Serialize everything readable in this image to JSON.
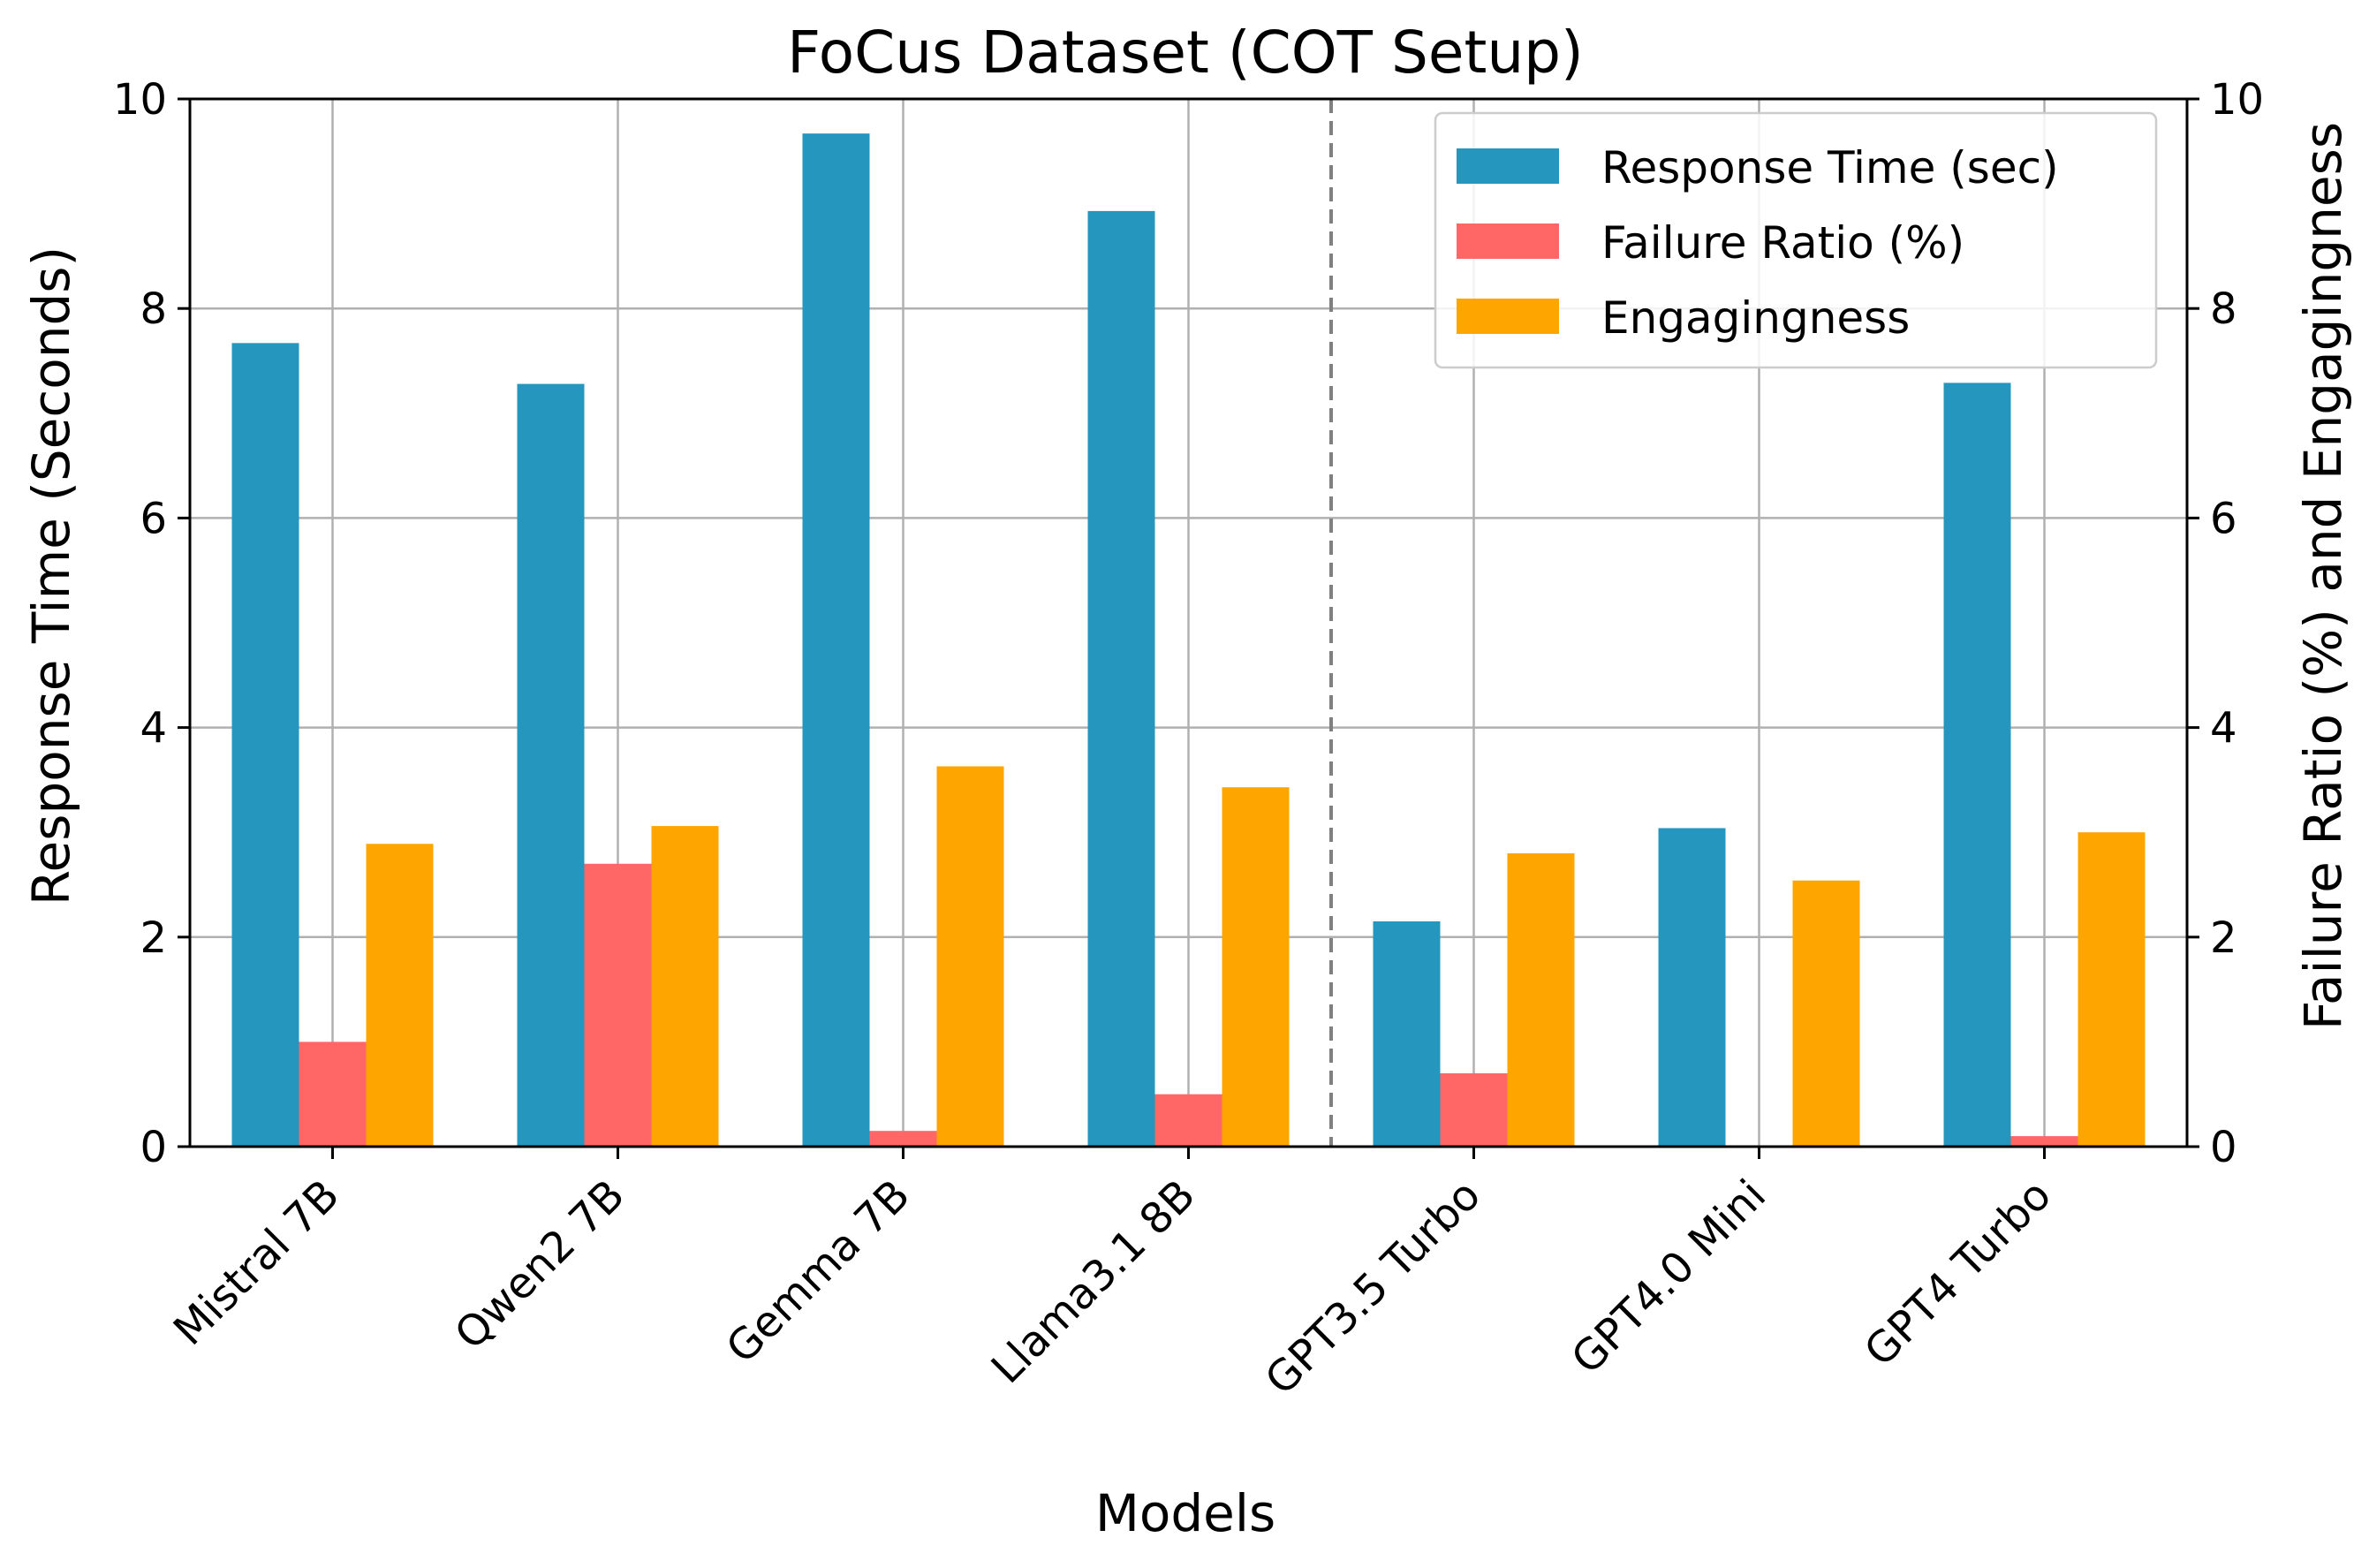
{
  "chart_data": {
    "type": "bar",
    "title": "FoCus Dataset (COT Setup)",
    "xlabel": "Models",
    "ylabel": "Response Time (Seconds)",
    "ylabel_right": "Failure Ratio (%) and Engagingness",
    "categories": [
      "Mistral 7B",
      "Qwen2 7B",
      "Gemma 7B",
      "Llama3.1 8B",
      "GPT3.5 Turbo",
      "GPT4.0 Mini",
      "GPT4 Turbo"
    ],
    "series": [
      {
        "name": "Response Time (sec)",
        "axis": "left",
        "color": "#2596be",
        "values": [
          7.67,
          7.28,
          9.67,
          8.93,
          2.15,
          3.04,
          7.29
        ]
      },
      {
        "name": "Failure Ratio (%)",
        "axis": "right",
        "color": "#ff6666",
        "values": [
          1.0,
          2.7,
          0.15,
          0.5,
          0.7,
          0.0,
          0.1
        ]
      },
      {
        "name": "Engagingness",
        "axis": "right",
        "color": "#ffa500",
        "values": [
          2.89,
          3.06,
          3.63,
          3.43,
          2.8,
          2.54,
          3.0
        ]
      }
    ],
    "ylim": [
      0,
      10
    ],
    "ylim_right": [
      0,
      10
    ],
    "yticks": [
      "0",
      "2",
      "4",
      "6",
      "8",
      "10"
    ],
    "grid": true,
    "legend_position": "top-right",
    "separator_after_category": "Llama3.1 8B",
    "separator_color": "#808080"
  }
}
